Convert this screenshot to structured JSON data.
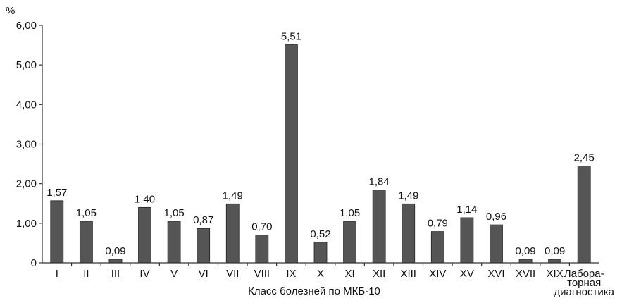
{
  "chart_data": {
    "type": "bar",
    "title": "",
    "ylabel": "%",
    "xlabel": "Класс болезней по МКБ-10",
    "ylim": [
      0,
      6
    ],
    "yticks": [
      "0",
      "1,00",
      "2,00",
      "3,00",
      "4,00",
      "5,00",
      "6,00"
    ],
    "grid": false,
    "legend": "none",
    "bar_color": "#555555",
    "categories": [
      [
        "I"
      ],
      [
        "II"
      ],
      [
        "III"
      ],
      [
        "IV"
      ],
      [
        "V"
      ],
      [
        "VI"
      ],
      [
        "VII"
      ],
      [
        "VIII"
      ],
      [
        "IX"
      ],
      [
        "X"
      ],
      [
        "XI"
      ],
      [
        "XII"
      ],
      [
        "XIII"
      ],
      [
        "XIV"
      ],
      [
        "XV"
      ],
      [
        "XVI"
      ],
      [
        "XVII"
      ],
      [
        "XIX"
      ],
      [
        "Лабора-",
        "торная",
        "диагностика"
      ]
    ],
    "values": [
      1.57,
      1.05,
      0.09,
      1.4,
      1.05,
      0.87,
      1.49,
      0.7,
      5.51,
      0.52,
      1.05,
      1.84,
      1.49,
      0.79,
      1.14,
      0.96,
      0.09,
      0.09,
      2.45
    ],
    "value_labels": [
      "1,57",
      "1,05",
      "0,09",
      "1,40",
      "1,05",
      "0,87",
      "1,49",
      "0,70",
      "5,51",
      "0,52",
      "1,05",
      "1,84",
      "1,49",
      "0,79",
      "1,14",
      "0,96",
      "0,09",
      "0,09",
      "2,45"
    ]
  }
}
